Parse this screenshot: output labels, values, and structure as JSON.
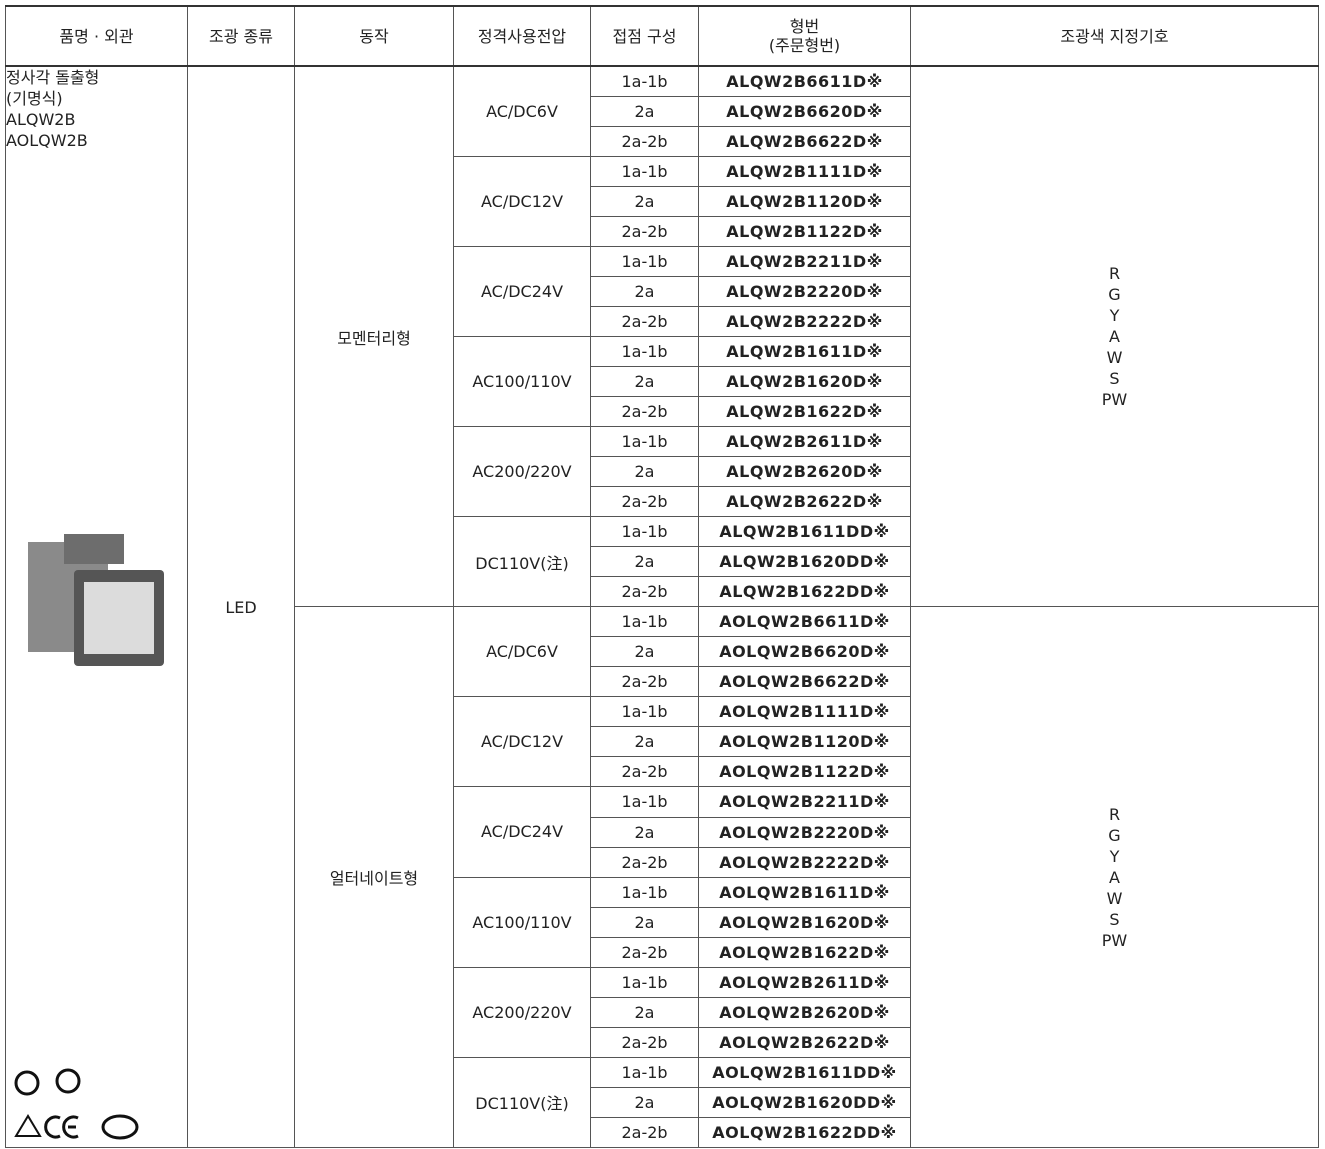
{
  "header": {
    "columns": [
      "품명 · 외관",
      "조광 종류",
      "동작",
      "정격사용전압",
      "접점 구성",
      "형번\n(주문형번)",
      "조광색 지정기호"
    ]
  },
  "product": {
    "name_lines": [
      "정사각 돌출형",
      "(기명식)",
      "ALQW2B",
      "AOLQW2B"
    ],
    "light": "LED"
  },
  "actions": [
    {
      "name": "모멘터리형",
      "colors": [
        "R",
        "G",
        "Y",
        "A",
        "W",
        "S",
        "PW"
      ],
      "voltages": [
        {
          "voltage": "AC/DC6V",
          "rows": [
            {
              "contact": "1a-1b",
              "model": "ALQW2B6611D※"
            },
            {
              "contact": "2a",
              "model": "ALQW2B6620D※"
            },
            {
              "contact": "2a-2b",
              "model": "ALQW2B6622D※"
            }
          ]
        },
        {
          "voltage": "AC/DC12V",
          "rows": [
            {
              "contact": "1a-1b",
              "model": "ALQW2B1111D※"
            },
            {
              "contact": "2a",
              "model": "ALQW2B1120D※"
            },
            {
              "contact": "2a-2b",
              "model": "ALQW2B1122D※"
            }
          ]
        },
        {
          "voltage": "AC/DC24V",
          "rows": [
            {
              "contact": "1a-1b",
              "model": "ALQW2B2211D※"
            },
            {
              "contact": "2a",
              "model": "ALQW2B2220D※"
            },
            {
              "contact": "2a-2b",
              "model": "ALQW2B2222D※"
            }
          ]
        },
        {
          "voltage": "AC100/110V",
          "rows": [
            {
              "contact": "1a-1b",
              "model": "ALQW2B1611D※"
            },
            {
              "contact": "2a",
              "model": "ALQW2B1620D※"
            },
            {
              "contact": "2a-2b",
              "model": "ALQW2B1622D※"
            }
          ]
        },
        {
          "voltage": "AC200/220V",
          "rows": [
            {
              "contact": "1a-1b",
              "model": "ALQW2B2611D※"
            },
            {
              "contact": "2a",
              "model": "ALQW2B2620D※"
            },
            {
              "contact": "2a-2b",
              "model": "ALQW2B2622D※"
            }
          ]
        },
        {
          "voltage": "DC110V(注)",
          "rows": [
            {
              "contact": "1a-1b",
              "model": "ALQW2B1611DD※"
            },
            {
              "contact": "2a",
              "model": "ALQW2B1620DD※"
            },
            {
              "contact": "2a-2b",
              "model": "ALQW2B1622DD※"
            }
          ]
        }
      ]
    },
    {
      "name": "얼터네이트형",
      "colors": [
        "R",
        "G",
        "Y",
        "A",
        "W",
        "S",
        "PW"
      ],
      "voltages": [
        {
          "voltage": "AC/DC6V",
          "rows": [
            {
              "contact": "1a-1b",
              "model": "AOLQW2B6611D※"
            },
            {
              "contact": "2a",
              "model": "AOLQW2B6620D※"
            },
            {
              "contact": "2a-2b",
              "model": "AOLQW2B6622D※"
            }
          ]
        },
        {
          "voltage": "AC/DC12V",
          "rows": [
            {
              "contact": "1a-1b",
              "model": "AOLQW2B1111D※"
            },
            {
              "contact": "2a",
              "model": "AOLQW2B1120D※"
            },
            {
              "contact": "2a-2b",
              "model": "AOLQW2B1122D※"
            }
          ]
        },
        {
          "voltage": "AC/DC24V",
          "rows": [
            {
              "contact": "1a-1b",
              "model": "AOLQW2B2211D※"
            },
            {
              "contact": "2a",
              "model": "AOLQW2B2220D※"
            },
            {
              "contact": "2a-2b",
              "model": "AOLQW2B2222D※"
            }
          ]
        },
        {
          "voltage": "AC100/110V",
          "rows": [
            {
              "contact": "1a-1b",
              "model": "AOLQW2B1611D※"
            },
            {
              "contact": "2a",
              "model": "AOLQW2B1620D※"
            },
            {
              "contact": "2a-2b",
              "model": "AOLQW2B1622D※"
            }
          ]
        },
        {
          "voltage": "AC200/220V",
          "rows": [
            {
              "contact": "1a-1b",
              "model": "AOLQW2B2611D※"
            },
            {
              "contact": "2a",
              "model": "AOLQW2B2620D※"
            },
            {
              "contact": "2a-2b",
              "model": "AOLQW2B2622D※"
            }
          ]
        },
        {
          "voltage": "DC110V(注)",
          "rows": [
            {
              "contact": "1a-1b",
              "model": "AOLQW2B1611DD※"
            },
            {
              "contact": "2a",
              "model": "AOLQW2B1620DD※"
            },
            {
              "contact": "2a-2b",
              "model": "AOLQW2B1622DD※"
            }
          ]
        }
      ]
    }
  ]
}
